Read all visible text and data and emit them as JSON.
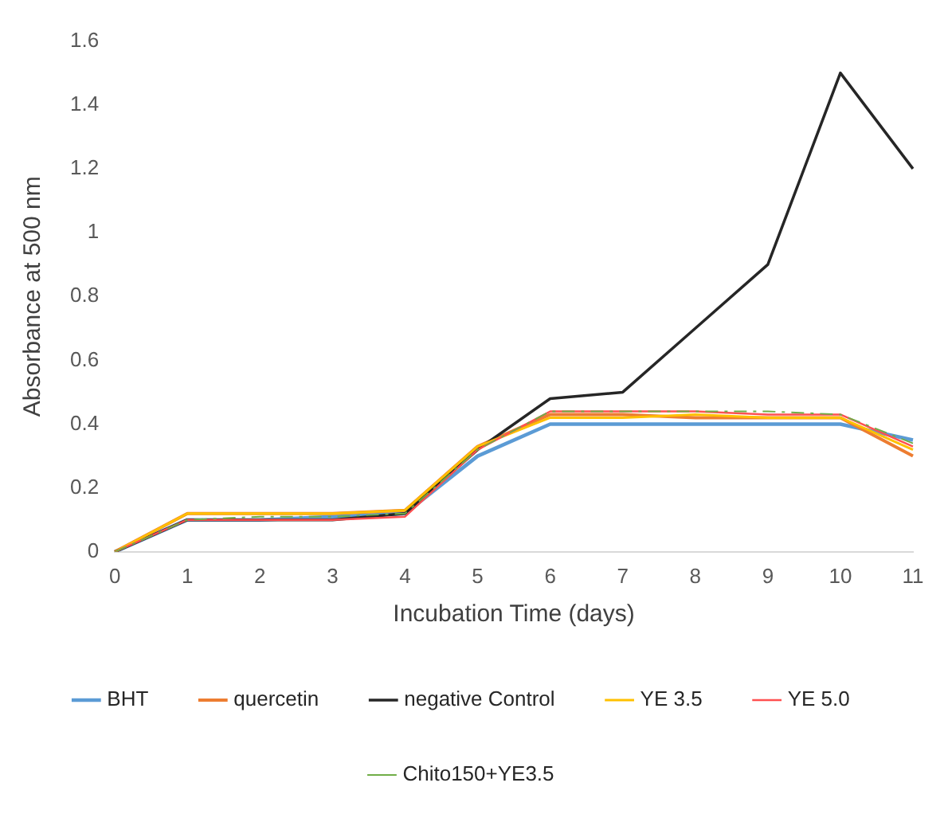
{
  "chart_data": {
    "type": "line",
    "xlabel": "Incubation Time (days)",
    "ylabel": "Absorbance at 500 nm",
    "categories": [
      "0",
      "1",
      "2",
      "3",
      "4",
      "5",
      "6",
      "7",
      "8",
      "9",
      "10",
      "11"
    ],
    "ylim": [
      0,
      1.6
    ],
    "yticks": [
      0,
      {
        "value": 0.2,
        "label": "0.2"
      },
      {
        "value": 0.4,
        "label": "0.4"
      },
      {
        "value": 0.6,
        "label": "0.6"
      },
      {
        "value": 0.8,
        "label": "0.8"
      },
      1,
      {
        "value": 1.2,
        "label": "1.2"
      },
      {
        "value": 1.4,
        "label": "1.4"
      },
      {
        "value": 1.6,
        "label": "1.6"
      }
    ],
    "grid": false,
    "legend": "bottom",
    "marker": "none",
    "series": [
      {
        "name": "BHT",
        "color": "#5b9bd5",
        "values": [
          0,
          0.1,
          0.1,
          0.11,
          0.12,
          0.3,
          0.4,
          0.4,
          0.4,
          0.4,
          0.4,
          0.35
        ]
      },
      {
        "name": "quercetin",
        "color": "#ed7d31",
        "values": [
          0,
          0.12,
          0.12,
          0.12,
          0.13,
          0.33,
          0.43,
          0.43,
          0.42,
          0.42,
          0.42,
          0.3
        ]
      },
      {
        "name": "negative Control",
        "color": "#262626",
        "values": [
          0,
          0.1,
          0.1,
          0.1,
          0.12,
          0.32,
          0.48,
          0.5,
          0.7,
          0.9,
          1.5,
          1.2
        ]
      },
      {
        "name": "YE 3.5",
        "color": "#ffc000",
        "values": [
          0,
          0.12,
          0.12,
          0.12,
          0.13,
          0.33,
          0.42,
          0.42,
          0.43,
          0.42,
          0.42,
          0.32
        ]
      },
      {
        "name": "YE 5.0",
        "color": "#ff5050",
        "values": [
          0,
          0.1,
          0.1,
          0.1,
          0.11,
          0.32,
          0.44,
          0.44,
          0.44,
          0.43,
          0.43,
          0.33
        ]
      },
      {
        "name": "Chito150+YE3.5",
        "color": "#70ad47",
        "line_style": "dashed",
        "values": [
          0,
          0.1,
          0.11,
          0.11,
          0.12,
          0.32,
          0.44,
          0.44,
          0.44,
          0.44,
          0.43,
          0.34
        ]
      }
    ]
  }
}
